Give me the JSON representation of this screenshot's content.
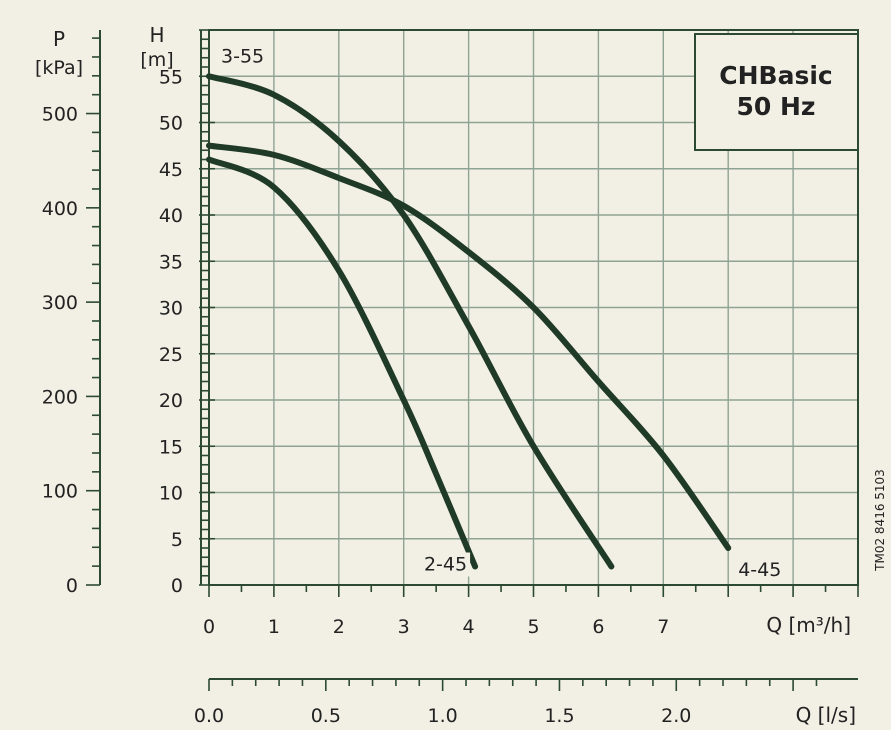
{
  "chart_data": {
    "type": "line",
    "title": "",
    "legend_box": {
      "line1": "CHBasic",
      "line2": "50 Hz",
      "placement": "top-right"
    },
    "left_axis": {
      "label": "H",
      "unit": "[m]",
      "range": [
        0,
        60
      ],
      "ticks": [
        "0",
        "5",
        "10",
        "15",
        "20",
        "25",
        "30",
        "35",
        "40",
        "45",
        "50",
        "55"
      ]
    },
    "pressure_axis": {
      "label": "P",
      "unit": "[kPa]",
      "ticks": [
        "0",
        "100",
        "200",
        "300",
        "400",
        "500"
      ],
      "values": [
        0,
        100,
        200,
        300,
        400,
        500
      ]
    },
    "x_axis": {
      "label": "Q [m³/h]",
      "range": [
        0,
        10
      ],
      "ticks": [
        "0",
        "1",
        "2",
        "3",
        "4",
        "5",
        "6",
        "7"
      ]
    },
    "flow_axis": {
      "label": "Q [l/s]",
      "ticks": [
        "0.0",
        "0.5",
        "1.0",
        "1.5",
        "2.0"
      ],
      "values": [
        0,
        0.5,
        1.0,
        1.5,
        2.0
      ]
    },
    "side_note": "TM02 8416 5103",
    "grid": true,
    "series": [
      {
        "name": "3-55",
        "color": "#1f3a26",
        "x": [
          0,
          1,
          2,
          3,
          4,
          5,
          6.2
        ],
        "y": [
          55,
          53,
          48,
          40,
          28,
          15,
          2
        ]
      },
      {
        "name": "2-45",
        "color": "#1f3a26",
        "x": [
          0,
          1,
          2,
          3,
          3.5,
          4.1
        ],
        "y": [
          46,
          43,
          34,
          20,
          12,
          2
        ]
      },
      {
        "name": "4-45",
        "color": "#1f3a26",
        "x": [
          0,
          1,
          2,
          3,
          4,
          5,
          6,
          7,
          8
        ],
        "y": [
          47.5,
          46.5,
          44,
          41,
          36,
          30,
          22,
          14,
          4
        ]
      }
    ]
  }
}
